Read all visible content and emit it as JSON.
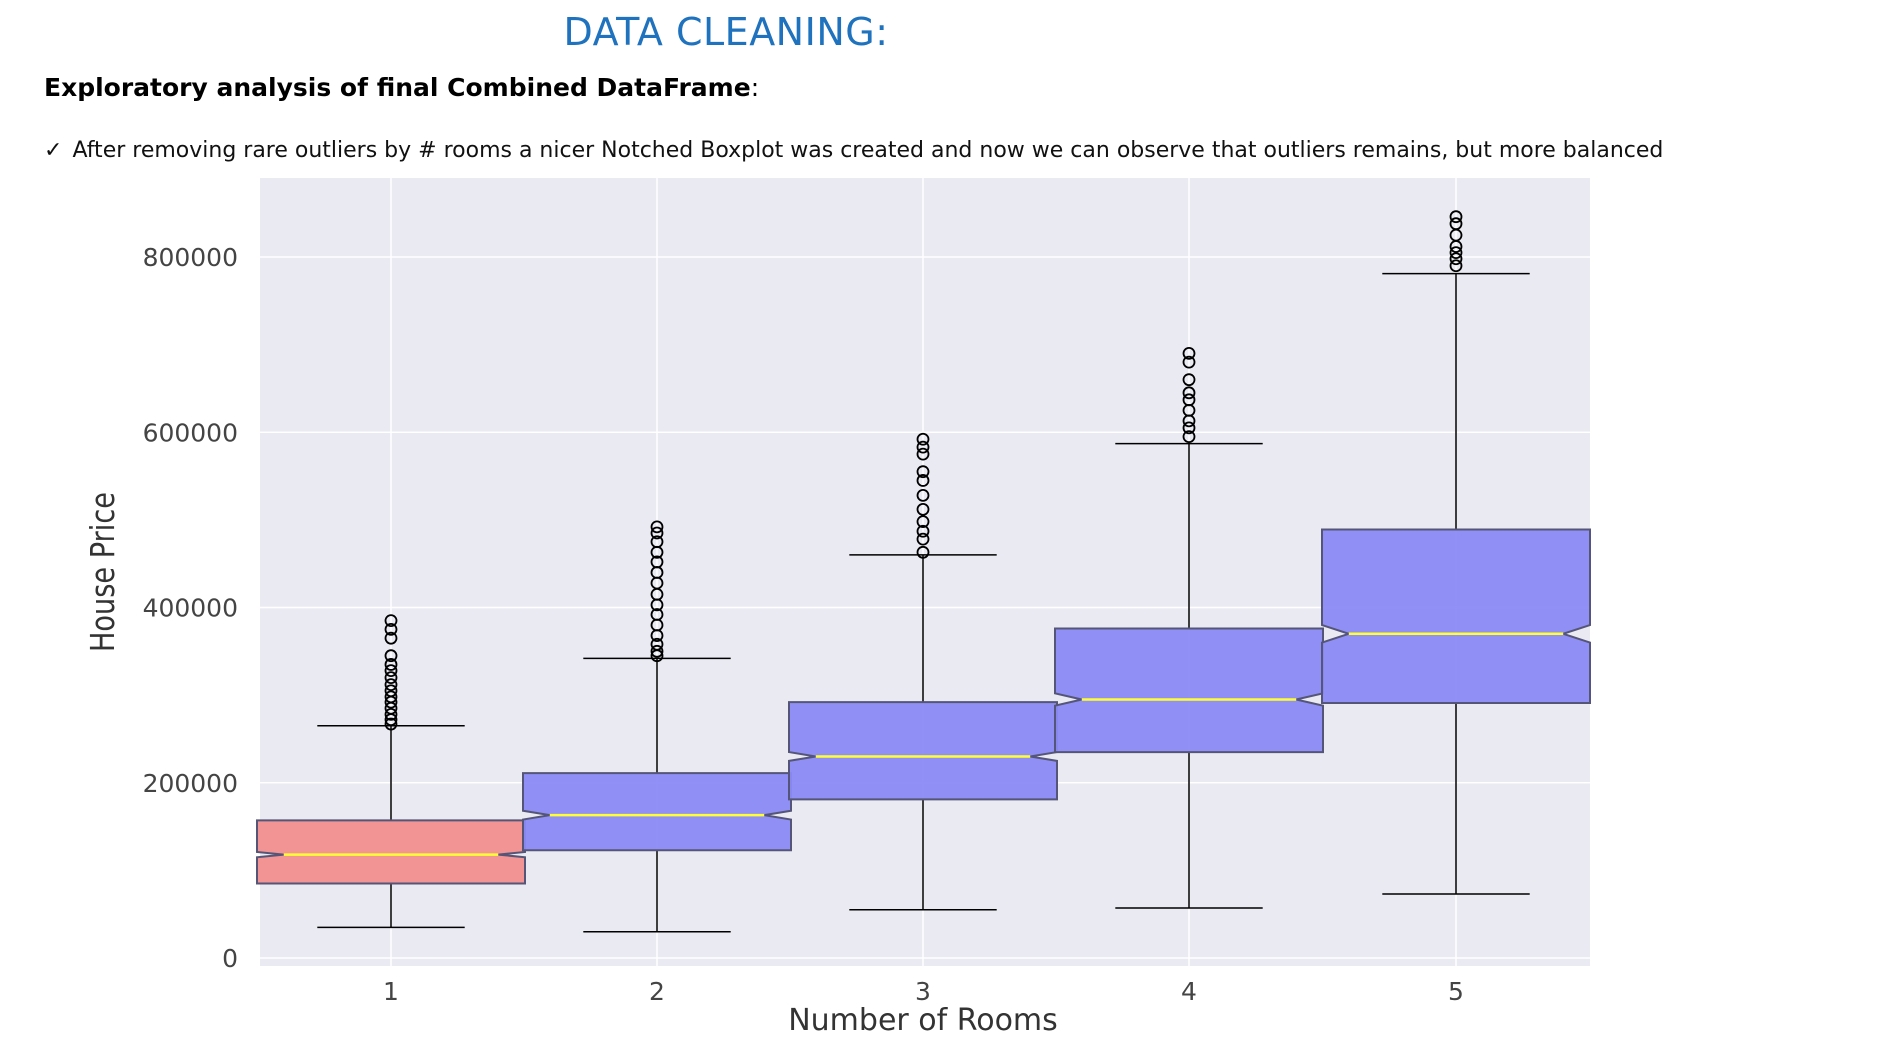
{
  "header": {
    "title": "DATA CLEANING:",
    "subtitle": "Exploratory analysis of final Combined DataFrame",
    "subtitle_suffix": ":",
    "bullet_icon": "check-icon",
    "bullet_check": "✓",
    "bullet_text": "After removing rare outliers by # rooms a nicer Notched Boxplot was created and now we can observe that outliers remains, but more balanced"
  },
  "colors": {
    "background": "#eaeaf2",
    "grid": "#ffffff",
    "first_box": "#f28e8e",
    "other_boxes": "#8a8af5",
    "median": "#ffff33",
    "title": "#1f72bd"
  },
  "chart_data": {
    "type": "notched-boxplot",
    "xlabel": "Number of Rooms",
    "ylabel": "House Price",
    "categories": [
      "1",
      "2",
      "3",
      "4",
      "5"
    ],
    "ylim": [
      -5000,
      875000
    ],
    "yticks": [
      0,
      200000,
      400000,
      600000,
      800000
    ],
    "ytick_labels": [
      "0",
      "200000",
      "400000",
      "600000",
      "800000"
    ],
    "grid": true,
    "legend": "none",
    "boxes": [
      {
        "category": "1",
        "whisker_low": 35000,
        "q1": 85000,
        "notch_low": 115000,
        "median": 118000,
        "notch_high": 121000,
        "q3": 157000,
        "whisker_high": 265000,
        "outliers": [
          267000,
          272000,
          278000,
          285000,
          292000,
          298000,
          305000,
          312000,
          320000,
          328000,
          335000,
          345000,
          365000,
          375000,
          385000
        ]
      },
      {
        "category": "2",
        "whisker_low": 30000,
        "q1": 123000,
        "notch_low": 158000,
        "median": 163000,
        "notch_high": 168000,
        "q3": 211000,
        "whisker_high": 342000,
        "outliers": [
          345000,
          350000,
          358000,
          368000,
          380000,
          392000,
          403000,
          415000,
          428000,
          440000,
          452000,
          463000,
          475000,
          485000,
          492000
        ]
      },
      {
        "category": "3",
        "whisker_low": 55000,
        "q1": 181000,
        "notch_low": 225000,
        "median": 230000,
        "notch_high": 235000,
        "q3": 292000,
        "whisker_high": 460000,
        "outliers": [
          463000,
          478000,
          487000,
          498000,
          512000,
          528000,
          545000,
          555000,
          575000,
          583000,
          592000
        ]
      },
      {
        "category": "4",
        "whisker_low": 57000,
        "q1": 235000,
        "notch_low": 288000,
        "median": 295000,
        "notch_high": 302000,
        "q3": 376000,
        "whisker_high": 587000,
        "outliers": [
          595000,
          605000,
          613000,
          625000,
          637000,
          645000,
          660000,
          680000,
          690000
        ]
      },
      {
        "category": "5",
        "whisker_low": 73000,
        "q1": 291000,
        "notch_low": 360000,
        "median": 370000,
        "notch_high": 380000,
        "q3": 489000,
        "whisker_high": 781000,
        "outliers": [
          790000,
          798000,
          805000,
          812000,
          825000,
          838000,
          846000
        ]
      }
    ]
  }
}
